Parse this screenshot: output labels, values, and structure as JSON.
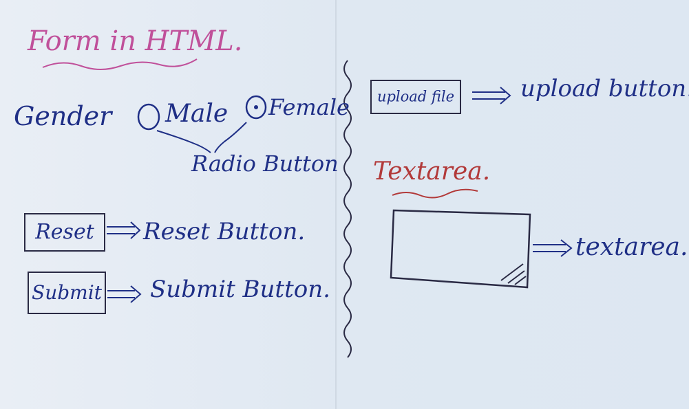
{
  "title": "Form in HTML.",
  "gender": {
    "label": "Gender",
    "option_male": "Male",
    "option_female": "Female",
    "note": "Radio Button"
  },
  "reset": {
    "box_label": "Reset",
    "note": "Reset Button."
  },
  "submit": {
    "box_label": "Submit",
    "note": "Submit Button."
  },
  "upload": {
    "box_label": "upload file",
    "note": "upload button."
  },
  "textarea": {
    "heading": "Textarea.",
    "note": "textarea."
  },
  "colors": {
    "ink_blue": "#1f2f86",
    "ink_pink": "#c0509a",
    "ink_red": "#b23a3a",
    "board": "#e3ebf4"
  }
}
